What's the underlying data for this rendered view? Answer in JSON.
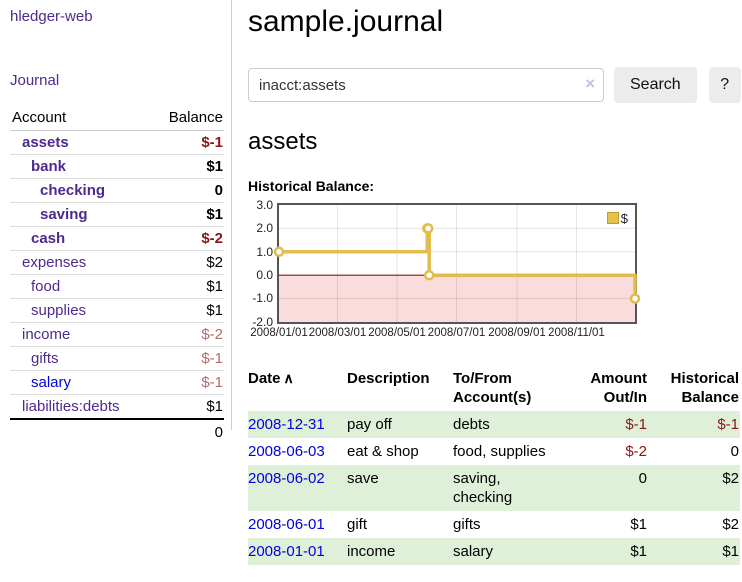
{
  "sidebar": {
    "app_title": "hledger-web",
    "journal_link": "Journal",
    "table": {
      "col_account": "Account",
      "col_balance": "Balance"
    },
    "accounts": [
      {
        "name": "assets",
        "indent": 1,
        "match": true,
        "link": "purple",
        "balance": "$-1",
        "neg": "strong"
      },
      {
        "name": "bank",
        "indent": 2,
        "match": true,
        "link": "purple",
        "balance": "$1",
        "neg": null
      },
      {
        "name": "checking",
        "indent": 3,
        "match": true,
        "link": "purple",
        "balance": "0",
        "neg": null
      },
      {
        "name": "saving",
        "indent": 3,
        "match": true,
        "link": "purple",
        "balance": "$1",
        "neg": null
      },
      {
        "name": "cash",
        "indent": 2,
        "match": true,
        "link": "purple",
        "balance": "$-2",
        "neg": "strong"
      },
      {
        "name": "expenses",
        "indent": 1,
        "match": false,
        "link": "purple",
        "balance": "$2",
        "neg": null
      },
      {
        "name": "food",
        "indent": 2,
        "match": false,
        "link": "purple",
        "balance": "$1",
        "neg": null
      },
      {
        "name": "supplies",
        "indent": 2,
        "match": false,
        "link": "purple",
        "balance": "$1",
        "neg": null
      },
      {
        "name": "income",
        "indent": 1,
        "match": false,
        "link": "purple",
        "balance": "$-2",
        "neg": "soft"
      },
      {
        "name": "gifts",
        "indent": 2,
        "match": false,
        "link": "purple",
        "balance": "$-1",
        "neg": "soft"
      },
      {
        "name": "salary",
        "indent": 2,
        "match": false,
        "link": "blue",
        "balance": "$-1",
        "neg": "soft"
      },
      {
        "name": "liabilities:debts",
        "indent": 1,
        "match": false,
        "link": "purple",
        "balance": "$1",
        "neg": null
      }
    ],
    "total": "0"
  },
  "main": {
    "title": "sample.journal",
    "search": {
      "value": "inacct:assets",
      "clear_icon": "×",
      "search_button": "Search",
      "help_button": "?"
    },
    "account_heading": "assets",
    "chart_label": "Historical Balance:"
  },
  "register": {
    "headers": {
      "date": "Date",
      "sort_icon": "∧",
      "description": "Description",
      "account_line1": "To/From",
      "account_line2": "Account(s)",
      "amount_line1": "Amount",
      "amount_line2": "Out/In",
      "balance_line1": "Historical",
      "balance_line2": "Balance"
    },
    "rows": [
      {
        "date": "2008-12-31",
        "description": "pay off",
        "accounts": "debts",
        "amount": "$-1",
        "amount_neg": true,
        "balance": "$-1",
        "balance_neg": true,
        "shaded": true
      },
      {
        "date": "2008-06-03",
        "description": "eat & shop",
        "accounts": "food, supplies",
        "amount": "$-2",
        "amount_neg": true,
        "balance": "0",
        "balance_neg": false,
        "shaded": false
      },
      {
        "date": "2008-06-02",
        "description": "save",
        "accounts": "saving, checking",
        "amount": "0",
        "amount_neg": false,
        "balance": "$2",
        "balance_neg": false,
        "shaded": true
      },
      {
        "date": "2008-06-01",
        "description": "gift",
        "accounts": "gifts",
        "amount": "$1",
        "amount_neg": false,
        "balance": "$2",
        "balance_neg": false,
        "shaded": false
      },
      {
        "date": "2008-01-01",
        "description": "income",
        "accounts": "salary",
        "amount": "$1",
        "amount_neg": false,
        "balance": "$1",
        "balance_neg": false,
        "shaded": true
      }
    ]
  },
  "chart_data": {
    "type": "line",
    "step": true,
    "title": "Historical Balance:",
    "legend": [
      "$"
    ],
    "legend_position": "top-right",
    "grid": true,
    "xrange": [
      "2008-01-01",
      "2008-12-31"
    ],
    "x": [
      "2008-01-01",
      "2008-06-01",
      "2008-06-02",
      "2008-06-03",
      "2008-12-31"
    ],
    "series": [
      {
        "name": "$",
        "values": [
          1,
          2,
          2,
          0,
          -1
        ]
      }
    ],
    "ylim": [
      -2,
      3
    ],
    "ytick_labels": [
      "3.0",
      "2.0",
      "1.0",
      "0.0",
      "-1.0",
      "-2.0"
    ],
    "xticks": [
      {
        "date": "2008-01-01",
        "label": "2008/01/01"
      },
      {
        "date": "2008-03-01",
        "label": "2008/03/01"
      },
      {
        "date": "2008-05-01",
        "label": "2008/05/01"
      },
      {
        "date": "2008-07-01",
        "label": "2008/07/01"
      },
      {
        "date": "2008-09-01",
        "label": "2008/09/01"
      },
      {
        "date": "2008-11-01",
        "label": "2008/11/01"
      }
    ],
    "negative_region_shaded": true
  },
  "colors": {
    "link_purple": "#4e2a8e",
    "link_blue": "#0000e0",
    "negative_strong": "#8c1616",
    "negative_soft": "#b06a6a",
    "row_green": "#dff0d8",
    "button_bg": "#ececec",
    "chart_line": "#e2bc4d",
    "chart_marker_fill": "#ffffff",
    "chart_negative_fill": "#fbdcdc",
    "chart_zero_line": "#8b1a1a",
    "chart_border": "#555555",
    "grid_line": "#e3e3e3"
  }
}
